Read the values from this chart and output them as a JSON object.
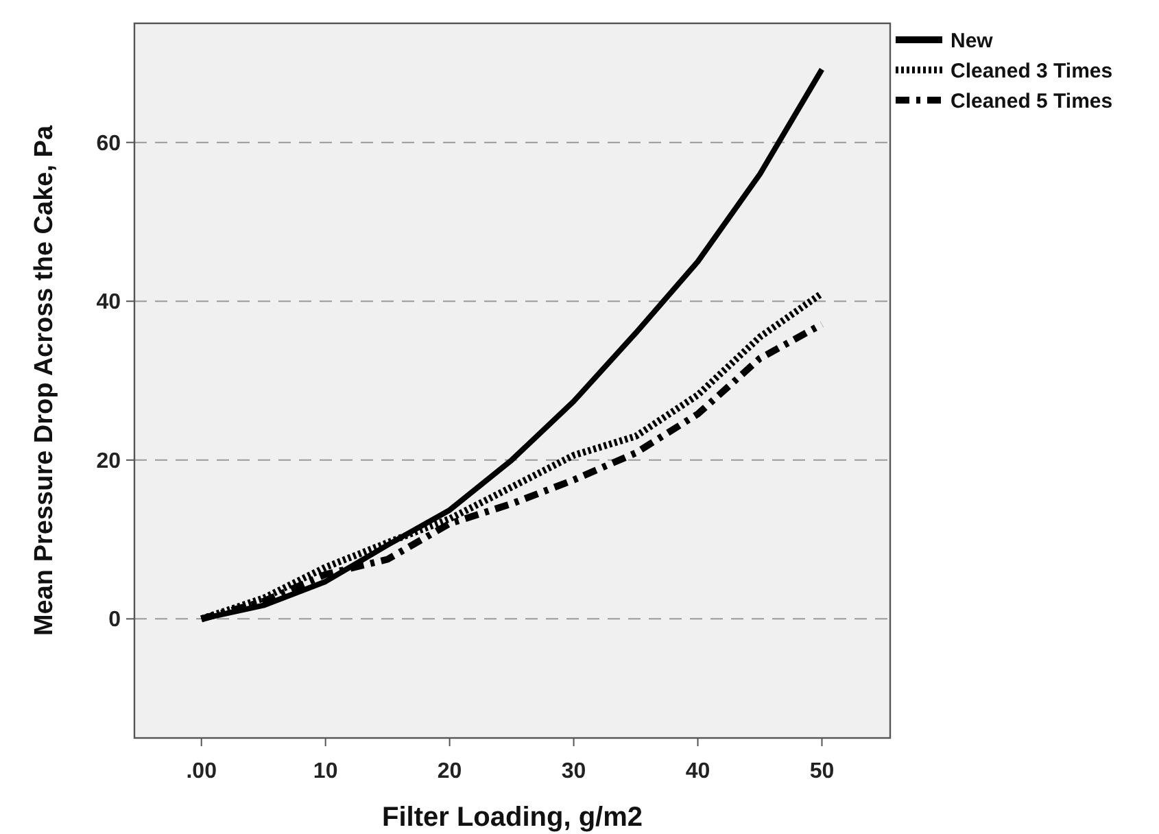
{
  "chart_data": {
    "type": "line",
    "xlabel": "Filter Loading, g/m2",
    "ylabel": "Mean Pressure Drop Across the Cake, Pa",
    "x": [
      0,
      5,
      10,
      15,
      20,
      25,
      30,
      35,
      40,
      45,
      50
    ],
    "series": [
      {
        "name": "New",
        "color": "#000000",
        "line_style": "solid",
        "values": [
          0,
          1.7,
          4.7,
          9.3,
          13.7,
          20,
          27.4,
          36,
          45,
          56,
          69.2
        ]
      },
      {
        "name": "Cleaned 3 Times",
        "color": "#000000",
        "line_style": "dotted",
        "values": [
          0,
          2.6,
          6.5,
          9.6,
          12.6,
          16.6,
          20.6,
          23,
          28.2,
          35.5,
          41
        ]
      },
      {
        "name": "Cleaned 5 Times",
        "color": "#000000",
        "line_style": "dashdot",
        "values": [
          0,
          2.2,
          5.6,
          7.5,
          12,
          14.5,
          17.5,
          20.9,
          25.8,
          32.8,
          37.1
        ]
      }
    ],
    "xlim": [
      -5.4,
      55.5
    ],
    "ylim": [
      -15,
      75
    ],
    "xticks": [
      {
        "value": 0,
        "label": ".00"
      },
      10,
      20,
      30,
      40,
      50
    ],
    "yticks": [
      0,
      20,
      40,
      60
    ],
    "grid": "y",
    "legend": "top right"
  }
}
